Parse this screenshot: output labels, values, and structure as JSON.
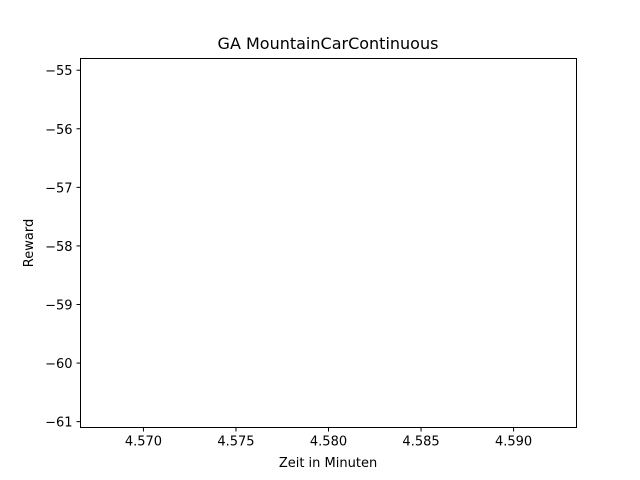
{
  "chart_data": {
    "type": "line",
    "title": "GA MountainCarContinuous",
    "xlabel": "Zeit in Minuten",
    "ylabel": "Reward",
    "xlim": [
      4.5666,
      4.5934
    ],
    "ylim": [
      -61.1,
      -54.8
    ],
    "xticks": [
      4.57,
      4.575,
      4.58,
      4.585,
      4.59
    ],
    "xtick_labels": [
      "4.570",
      "4.575",
      "4.580",
      "4.585",
      "4.590"
    ],
    "yticks": [
      -55,
      -56,
      -57,
      -58,
      -59,
      -60,
      -61
    ],
    "ytick_labels": [
      "−55",
      "−56",
      "−57",
      "−58",
      "−59",
      "−60",
      "−61"
    ],
    "grid": false,
    "series": [
      {
        "x": [],
        "y": [],
        "color": "#1f77b4"
      }
    ]
  }
}
